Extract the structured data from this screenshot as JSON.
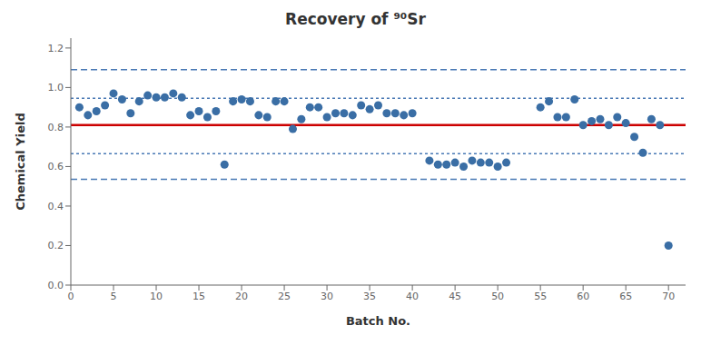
{
  "chart_data": {
    "type": "scatter",
    "title": "Recovery of ⁹⁰Sr",
    "xlabel": "Batch No.",
    "ylabel": "Chemical Yield",
    "x": [
      1,
      2,
      3,
      4,
      5,
      6,
      7,
      8,
      9,
      10,
      11,
      12,
      13,
      14,
      15,
      16,
      17,
      18,
      19,
      20,
      21,
      22,
      23,
      24,
      25,
      26,
      27,
      28,
      29,
      30,
      31,
      32,
      33,
      34,
      35,
      36,
      37,
      38,
      39,
      40,
      42,
      43,
      44,
      45,
      46,
      47,
      48,
      49,
      50,
      51,
      55,
      56,
      57,
      58,
      59,
      60,
      61,
      62,
      63,
      64,
      65,
      66,
      67,
      68,
      69,
      70
    ],
    "values": [
      0.9,
      0.86,
      0.88,
      0.91,
      0.97,
      0.94,
      0.87,
      0.93,
      0.96,
      0.95,
      0.95,
      0.97,
      0.95,
      0.86,
      0.88,
      0.85,
      0.88,
      0.61,
      0.93,
      0.94,
      0.93,
      0.86,
      0.85,
      0.93,
      0.93,
      0.79,
      0.84,
      0.9,
      0.9,
      0.85,
      0.87,
      0.87,
      0.86,
      0.91,
      0.89,
      0.91,
      0.87,
      0.87,
      0.86,
      0.87,
      0.63,
      0.61,
      0.61,
      0.62,
      0.6,
      0.63,
      0.62,
      0.62,
      0.6,
      0.62,
      0.9,
      0.93,
      0.85,
      0.85,
      0.94,
      0.81,
      0.83,
      0.84,
      0.81,
      0.85,
      0.82,
      0.75,
      0.67,
      0.84,
      0.81,
      0.2
    ],
    "color": "#3a6ea5",
    "marker": "circle",
    "xlim": [
      0,
      72
    ],
    "ylim": [
      0.0,
      1.25
    ],
    "xticks": [
      0,
      5,
      10,
      15,
      20,
      25,
      30,
      35,
      40,
      45,
      50,
      55,
      60,
      65,
      70
    ],
    "yticks": [
      {
        "value": 0.0,
        "label": "0.0"
      },
      0.2,
      0.4,
      0.6,
      0.8,
      {
        "value": 1.0,
        "label": "1.0"
      },
      1.2
    ],
    "hlines": [
      {
        "value": 0.81,
        "color": "#cc0000",
        "line_style": "solid"
      },
      {
        "value": 0.945,
        "color": "#4a7ab5",
        "line_style": "dotted"
      },
      {
        "value": 0.665,
        "color": "#4a7ab5",
        "line_style": "dotted"
      },
      {
        "value": 1.09,
        "color": "#4a7ab5",
        "line_style": "dashed"
      },
      {
        "value": 0.535,
        "color": "#4a7ab5",
        "line_style": "dashed"
      }
    ],
    "grid": false
  }
}
